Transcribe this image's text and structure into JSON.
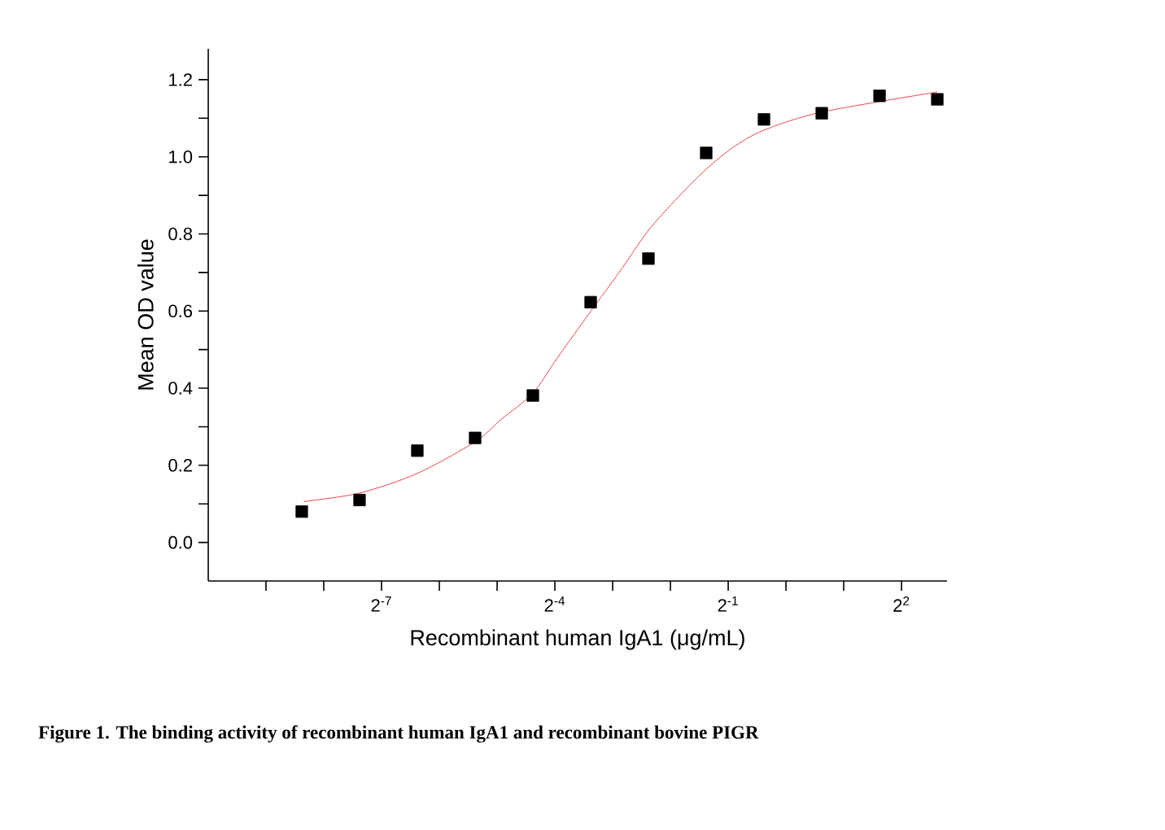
{
  "chart_data": {
    "type": "scatter",
    "xlabel": "Recombinant human IgA1 (μg/mL)",
    "ylabel": "Mean OD value",
    "annotations": [
      "Figure 1. The binding activity of recombinant human IgA1 and recombinant bovine PIGR"
    ],
    "log": "x",
    "xlim": [
      0.000977,
      6.9
    ],
    "xticks": [
      {
        "value": 0.001953125,
        "label": null
      },
      {
        "value": 0.00390625,
        "label": null
      },
      {
        "value": 0.0078125,
        "label": "2$^{-7}$"
      },
      {
        "value": 0.015625,
        "label": null
      },
      {
        "value": 0.03125,
        "label": null
      },
      {
        "value": 0.0625,
        "label": "2$^{-4}$"
      },
      {
        "value": 0.125,
        "label": null
      },
      {
        "value": 0.25,
        "label": null
      },
      {
        "value": 0.5,
        "label": "2$^{-1}$"
      },
      {
        "value": 1,
        "label": null
      },
      {
        "value": 2,
        "label": null
      },
      {
        "value": 4,
        "label": "2$^{2}$"
      }
    ],
    "ylim": [
      -0.1,
      1.28
    ],
    "yticks": [
      {
        "value": 0.0,
        "label": "0.0"
      },
      {
        "value": 0.1,
        "label": null
      },
      {
        "value": 0.2,
        "label": "0.2"
      },
      {
        "value": 0.3,
        "label": null
      },
      {
        "value": 0.4,
        "label": "0.4"
      },
      {
        "value": 0.5,
        "label": null
      },
      {
        "value": 0.6,
        "label": "0.6"
      },
      {
        "value": 0.7,
        "label": null
      },
      {
        "value": 0.8,
        "label": "0.8"
      },
      {
        "value": 0.9,
        "label": null
      },
      {
        "value": 1.0,
        "label": "1.0"
      },
      {
        "value": 1.1,
        "label": null
      },
      {
        "value": 1.2,
        "label": "1.2"
      }
    ],
    "grid": false,
    "marker": "square",
    "series": [
      {
        "color": "#000000",
        "x": [
          0.003,
          0.006,
          0.012,
          0.024,
          0.048,
          0.096,
          0.192,
          0.384,
          0.768,
          1.536,
          3.072,
          6.144
        ],
        "values": [
          0.08,
          0.11,
          0.238,
          0.271,
          0.381,
          0.623,
          0.736,
          1.01,
          1.097,
          1.113,
          1.158,
          1.149
        ]
      },
      {
        "type": "line",
        "color": "#e8474a",
        "marker": "none",
        "x": [
          0.00307,
          0.006,
          0.012,
          0.024,
          0.0328,
          0.048,
          0.0643,
          0.096,
          0.135,
          0.192,
          0.274,
          0.384,
          0.536,
          0.768,
          1.536,
          6.15
        ],
        "values": [
          0.106,
          0.128,
          0.179,
          0.261,
          0.319,
          0.387,
          0.478,
          0.599,
          0.7,
          0.809,
          0.895,
          0.968,
          1.026,
          1.069,
          1.116,
          1.168
        ]
      }
    ]
  }
}
